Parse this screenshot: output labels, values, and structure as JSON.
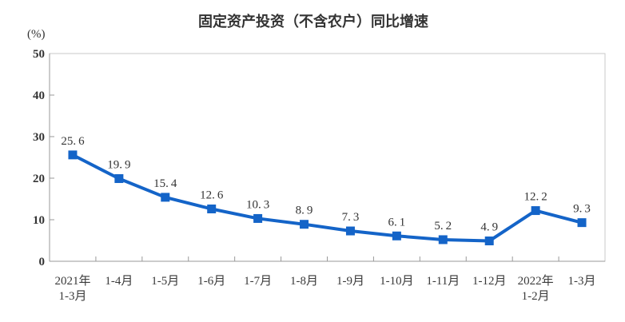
{
  "chart_data": {
    "type": "line",
    "title": "固定资产投资（不含农户）同比增速",
    "unit_label": "(%)",
    "categories": [
      "2021年\n1-3月",
      "1-4月",
      "1-5月",
      "1-6月",
      "1-7月",
      "1-8月",
      "1-9月",
      "1-10月",
      "1-11月",
      "1-12月",
      "2022年\n1-2月",
      "1-3月"
    ],
    "values": [
      25.6,
      19.9,
      15.4,
      12.6,
      10.3,
      8.9,
      7.3,
      6.1,
      5.2,
      4.9,
      12.2,
      9.3
    ],
    "ylim": [
      0,
      50
    ],
    "yticks": [
      0,
      10,
      20,
      30,
      40,
      50
    ],
    "grid": false,
    "legend": "none",
    "marker": "square",
    "xlabel": "",
    "ylabel": "(%)",
    "colors": {
      "line": "#1464C8",
      "text": "#333333",
      "xlabel_text": "#3A3A3A",
      "axis": "#999999",
      "plot_border": "#C9C9C9",
      "background": "#FFFFFF"
    }
  }
}
